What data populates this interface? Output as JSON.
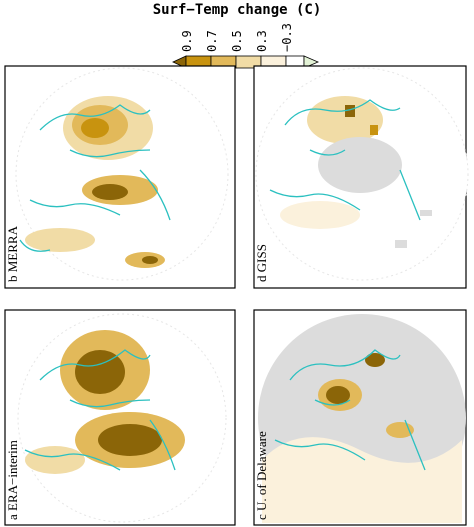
{
  "title": "Surf−Temp change (C)",
  "colorbar": {
    "labels": [
      "0.9",
      "0.7",
      "0.5",
      "0.3",
      "−0.3"
    ]
  },
  "panels": [
    {
      "label": "b MERRA"
    },
    {
      "label": "d GISS"
    },
    {
      "label": "a ERA−interim"
    },
    {
      "label": "c U. of Delaware"
    }
  ]
}
